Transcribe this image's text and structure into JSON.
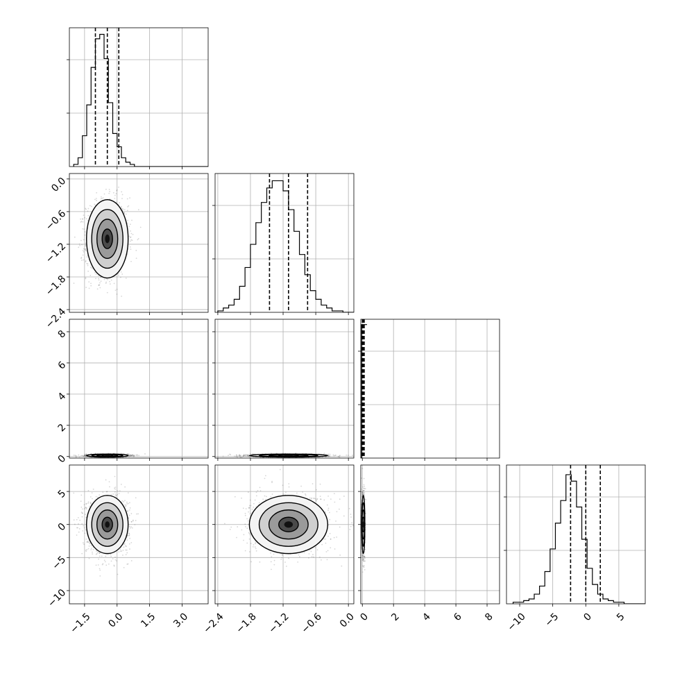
{
  "chart_data": {
    "type": "corner",
    "title": "",
    "grid": true,
    "colors": {
      "line": "#000000",
      "grid": "#b0b0b0",
      "points": "#444444"
    },
    "params": [
      {
        "range": [
          -2.2,
          4.2
        ],
        "ticks": [
          -1.5,
          0.0,
          1.5,
          3.0
        ],
        "tick_labels": [
          "−1.5",
          "0.0",
          "1.5",
          "3.0"
        ],
        "quantiles": [
          -1.0,
          -0.45,
          0.08
        ],
        "mean": -0.45,
        "sd": 0.48
      },
      {
        "range": [
          -2.45,
          0.1
        ],
        "ticks": [
          -2.4,
          -1.8,
          -1.2,
          -0.6,
          0.0
        ],
        "tick_labels": [
          "−2.4",
          "−1.8",
          "−1.2",
          "−0.6",
          "0.0"
        ],
        "quantiles": [
          -1.45,
          -1.1,
          -0.75
        ],
        "mean": -1.1,
        "sd": 0.36
      },
      {
        "range": [
          -0.1,
          8.8
        ],
        "ticks": [
          0,
          2,
          4,
          6,
          8
        ],
        "tick_labels": [
          "0",
          "2",
          "4",
          "6",
          "8"
        ],
        "quantiles": [
          0.0,
          0.05,
          0.12
        ],
        "mean": 0.06,
        "sd": 0.05
      },
      {
        "range": [
          -12,
          9
        ],
        "ticks": [
          -10,
          -5,
          0,
          5
        ],
        "tick_labels": [
          "−10",
          "−5",
          "0",
          "5"
        ],
        "quantiles": [
          -2.3,
          0.0,
          2.2
        ],
        "mean": 0.0,
        "sd": 2.2
      }
    ],
    "histograms": [
      {
        "bin_start": -2.0,
        "bin_width": 0.2,
        "counts": [
          1,
          4,
          14,
          28,
          45,
          58,
          60,
          49,
          29,
          15,
          9,
          4,
          2,
          1,
          0,
          0,
          0,
          0,
          0,
          0,
          0,
          0,
          0,
          0,
          0,
          0,
          0,
          0,
          0,
          0,
          0
        ],
        "max": 63
      },
      {
        "bin_start": -2.4,
        "bin_width": 0.1,
        "counts": [
          1,
          3,
          5,
          9,
          18,
          31,
          47,
          62,
          76,
          86,
          91,
          91,
          84,
          71,
          56,
          40,
          26,
          15,
          9,
          5,
          3,
          1,
          1,
          0,
          0
        ],
        "max": 96
      },
      {
        "bin_start": -0.05,
        "bin_width": 0.35,
        "counts": [
          100
        ],
        "max": 104
      },
      {
        "bin_start": -11.0,
        "bin_width": 0.8,
        "counts": [
          1,
          1,
          2,
          3,
          6,
          11,
          20,
          34,
          50,
          64,
          80,
          76,
          60,
          40,
          22,
          12,
          6,
          3,
          2,
          1,
          1,
          0,
          0,
          0,
          0,
          0
        ],
        "max": 86
      }
    ],
    "correlations": {
      "1,0": 0.05,
      "2,0": 0.0,
      "2,1": 0.0,
      "3,0": 0.0,
      "3,1": 0.0,
      "3,2": 0.0
    }
  }
}
